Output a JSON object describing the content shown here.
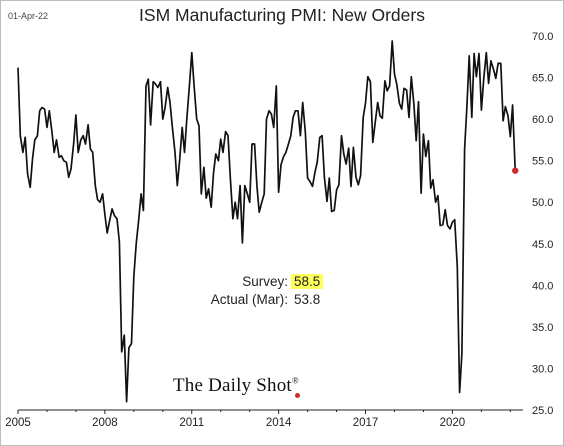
{
  "date_stamp": "01-Apr-22",
  "annotation": {
    "survey_label": "Survey:",
    "survey_value": "58.5",
    "actual_label": "Actual (Mar):",
    "actual_value": "53.8",
    "highlight_color": "#ffff5a"
  },
  "brand": "The Daily Shot",
  "brand_mark": "®",
  "colors": {
    "line": "#111111",
    "last_point": "#d12a2a",
    "brand_dot": "#d12a2a"
  },
  "chart_data": {
    "type": "line",
    "title": "ISM Manufacturing PMI: New Orders",
    "xlabel": "",
    "ylabel": "",
    "xlim": [
      2005.0,
      2022.3
    ],
    "ylim": [
      25,
      70
    ],
    "x_ticks": [
      2005,
      2008,
      2011,
      2014,
      2017,
      2020
    ],
    "x_tick_labels": [
      "2005",
      "2008",
      "2011",
      "2014",
      "2017",
      "2020"
    ],
    "y_ticks": [
      25,
      30,
      35,
      40,
      45,
      50,
      55,
      60,
      65,
      70
    ],
    "y_tick_labels": [
      "25.0",
      "30.0",
      "35.0",
      "40.0",
      "45.0",
      "50.0",
      "55.0",
      "60.0",
      "65.0",
      "70.0"
    ],
    "y_axis_side": "right",
    "grid": false,
    "series": [
      {
        "name": "",
        "x": [
          2005.0,
          2005.08,
          2005.17,
          2005.25,
          2005.33,
          2005.42,
          2005.5,
          2005.58,
          2005.67,
          2005.75,
          2005.83,
          2005.92,
          2006.0,
          2006.08,
          2006.17,
          2006.25,
          2006.33,
          2006.42,
          2006.5,
          2006.58,
          2006.67,
          2006.75,
          2006.83,
          2006.92,
          2007.0,
          2007.08,
          2007.17,
          2007.25,
          2007.33,
          2007.42,
          2007.5,
          2007.58,
          2007.67,
          2007.75,
          2007.83,
          2007.92,
          2008.0,
          2008.08,
          2008.17,
          2008.25,
          2008.33,
          2008.42,
          2008.5,
          2008.58,
          2008.67,
          2008.75,
          2008.83,
          2008.92,
          2009.0,
          2009.08,
          2009.17,
          2009.25,
          2009.33,
          2009.42,
          2009.5,
          2009.58,
          2009.67,
          2009.75,
          2009.83,
          2009.92,
          2010.0,
          2010.08,
          2010.17,
          2010.25,
          2010.33,
          2010.42,
          2010.5,
          2010.58,
          2010.67,
          2010.75,
          2010.83,
          2010.92,
          2011.0,
          2011.08,
          2011.17,
          2011.25,
          2011.33,
          2011.42,
          2011.5,
          2011.58,
          2011.67,
          2011.75,
          2011.83,
          2011.92,
          2012.0,
          2012.08,
          2012.17,
          2012.25,
          2012.33,
          2012.42,
          2012.5,
          2012.58,
          2012.67,
          2012.75,
          2012.83,
          2012.92,
          2013.0,
          2013.08,
          2013.17,
          2013.25,
          2013.33,
          2013.42,
          2013.5,
          2013.58,
          2013.67,
          2013.75,
          2013.83,
          2013.92,
          2014.0,
          2014.08,
          2014.17,
          2014.25,
          2014.33,
          2014.42,
          2014.5,
          2014.58,
          2014.67,
          2014.75,
          2014.83,
          2014.92,
          2015.0,
          2015.08,
          2015.17,
          2015.25,
          2015.33,
          2015.42,
          2015.5,
          2015.58,
          2015.67,
          2015.75,
          2015.83,
          2015.92,
          2016.0,
          2016.08,
          2016.17,
          2016.25,
          2016.33,
          2016.42,
          2016.5,
          2016.58,
          2016.67,
          2016.75,
          2016.83,
          2016.92,
          2017.0,
          2017.08,
          2017.17,
          2017.25,
          2017.33,
          2017.42,
          2017.5,
          2017.58,
          2017.67,
          2017.75,
          2017.83,
          2017.92,
          2018.0,
          2018.08,
          2018.17,
          2018.25,
          2018.33,
          2018.42,
          2018.5,
          2018.58,
          2018.67,
          2018.75,
          2018.83,
          2018.92,
          2019.0,
          2019.08,
          2019.17,
          2019.25,
          2019.33,
          2019.42,
          2019.5,
          2019.58,
          2019.67,
          2019.75,
          2019.83,
          2019.92,
          2020.0,
          2020.08,
          2020.17,
          2020.25,
          2020.33,
          2020.42,
          2020.5,
          2020.58,
          2020.67,
          2020.75,
          2020.83,
          2020.92,
          2021.0,
          2021.08,
          2021.17,
          2021.25,
          2021.33,
          2021.42,
          2021.5,
          2021.58,
          2021.67,
          2021.75,
          2021.83,
          2021.92,
          2022.0,
          2022.08,
          2022.17
        ],
        "y": [
          66.2,
          58.0,
          56.0,
          57.8,
          53.4,
          51.8,
          55.2,
          57.5,
          58.0,
          61.0,
          61.4,
          61.2,
          59.0,
          61.0,
          58.5,
          56.0,
          57.5,
          55.4,
          55.6,
          55.0,
          54.8,
          53.0,
          54.0,
          57.0,
          60.5,
          56.0,
          57.5,
          58.0,
          57.0,
          59.3,
          56.4,
          56.0,
          52.0,
          50.3,
          50.0,
          51.0,
          48.5,
          46.3,
          47.9,
          49.2,
          48.4,
          48.0,
          45.2,
          32.0,
          34.0,
          26.0,
          32.5,
          33.0,
          41.0,
          45.0,
          48.0,
          51.0,
          49.0,
          64.0,
          64.8,
          59.3,
          64.5,
          64.2,
          63.8,
          64.5,
          60.0,
          61.4,
          63.8,
          62.0,
          59.0,
          56.0,
          52.0,
          55.0,
          59.0,
          56.0,
          60.0,
          64.0,
          68.0,
          64.0,
          60.0,
          59.2,
          51.0,
          54.2,
          50.5,
          51.6,
          49.4,
          53.5,
          55.8,
          55.0,
          57.6,
          56.0,
          58.5,
          58.0,
          53.0,
          48.0,
          50.0,
          48.0,
          52.0,
          45.1,
          52.0,
          51.0,
          50.0,
          57.0,
          57.0,
          52.0,
          48.8,
          50.0,
          51.0,
          60.0,
          61.0,
          60.6,
          59.0,
          64.0,
          51.2,
          54.5,
          55.5,
          56.0,
          56.9,
          58.0,
          60.2,
          61.0,
          61.0,
          58.0,
          62.0,
          58.5,
          52.9,
          52.5,
          51.9,
          53.5,
          54.8,
          57.8,
          58.0,
          53.0,
          50.1,
          52.9,
          48.9,
          49.0,
          51.5,
          52.1,
          58.0,
          55.8,
          54.6,
          56.5,
          51.9,
          56.6,
          53.0,
          52.1,
          53.2,
          60.2,
          61.9,
          65.1,
          64.5,
          57.2,
          59.5,
          62.0,
          60.4,
          60.1,
          64.6,
          63.4,
          64.0,
          69.4,
          65.4,
          64.2,
          61.9,
          61.2,
          63.7,
          63.5,
          60.2,
          65.1,
          61.8,
          57.4,
          62.1,
          51.1,
          58.2,
          55.5,
          57.4,
          51.7,
          52.7,
          50.0,
          50.8,
          47.2,
          47.3,
          49.1,
          47.2,
          46.8,
          47.6,
          47.9,
          42.2,
          27.1,
          31.8,
          56.4,
          61.5,
          67.6,
          60.2,
          67.9,
          65.1,
          67.9,
          61.1,
          64.8,
          68.0,
          64.3,
          67.0,
          66.0,
          64.9,
          66.7,
          66.7,
          59.8,
          61.5,
          60.4,
          57.9,
          61.7,
          53.8
        ]
      }
    ],
    "last_point": {
      "x": 2022.17,
      "y": 53.8
    }
  }
}
